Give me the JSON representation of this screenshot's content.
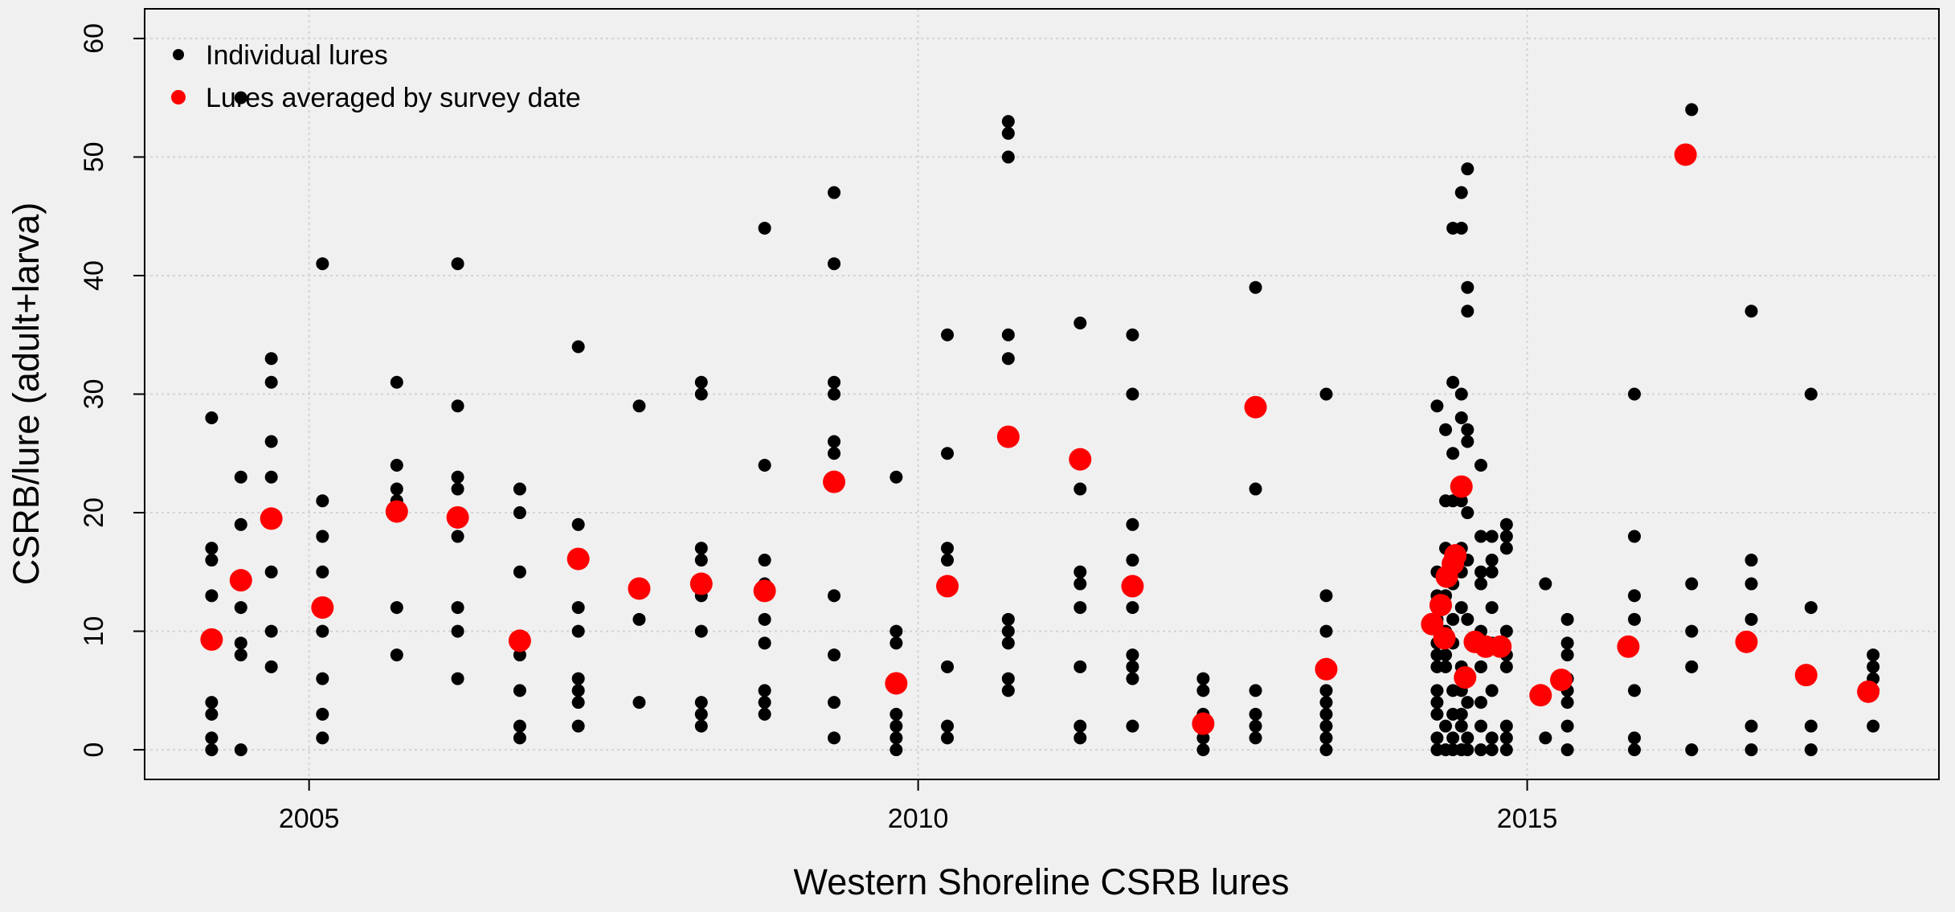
{
  "chart_data": {
    "type": "scatter",
    "xlabel": "Western Shoreline CSRB lures",
    "ylabel": "CSRB/lure (adult+larva)",
    "xlim": [
      2003.65,
      2018.38
    ],
    "ylim": [
      -2.5,
      62.5
    ],
    "xticks": [
      2005,
      2010,
      2015
    ],
    "yticks": [
      0,
      10,
      20,
      30,
      40,
      50,
      60
    ],
    "grid": true,
    "legend": "top-left",
    "series": [
      {
        "name": "Individual lures",
        "color": "#000000",
        "x": [
          2004.2,
          2004.2,
          2004.2,
          2004.2,
          2004.2,
          2004.2,
          2004.2,
          2004.2,
          2004.44,
          2004.44,
          2004.44,
          2004.44,
          2004.44,
          2004.44,
          2004.44,
          2004.69,
          2004.69,
          2004.69,
          2004.69,
          2004.69,
          2004.69,
          2004.69,
          2005.11,
          2005.11,
          2005.11,
          2005.11,
          2005.11,
          2005.11,
          2005.11,
          2005.11,
          2005.72,
          2005.72,
          2005.72,
          2005.72,
          2005.72,
          2005.72,
          2006.22,
          2006.22,
          2006.22,
          2006.22,
          2006.22,
          2006.22,
          2006.22,
          2006.22,
          2006.73,
          2006.73,
          2006.73,
          2006.73,
          2006.73,
          2006.73,
          2006.73,
          2006.73,
          2007.21,
          2007.21,
          2007.21,
          2007.21,
          2007.21,
          2007.21,
          2007.21,
          2007.21,
          2007.71,
          2007.71,
          2007.71,
          2008.22,
          2008.22,
          2008.22,
          2008.22,
          2008.22,
          2008.22,
          2008.22,
          2008.22,
          2008.22,
          2008.74,
          2008.74,
          2008.74,
          2008.74,
          2008.74,
          2008.74,
          2008.74,
          2008.74,
          2008.74,
          2009.31,
          2009.31,
          2009.31,
          2009.31,
          2009.31,
          2009.31,
          2009.31,
          2009.31,
          2009.31,
          2009.31,
          2009.82,
          2009.82,
          2009.82,
          2009.82,
          2009.82,
          2009.82,
          2009.82,
          2009.82,
          2010.24,
          2010.24,
          2010.24,
          2010.24,
          2010.24,
          2010.24,
          2010.24,
          2010.74,
          2010.74,
          2010.74,
          2010.74,
          2010.74,
          2010.74,
          2010.74,
          2010.74,
          2010.74,
          2010.74,
          2011.33,
          2011.33,
          2011.33,
          2011.33,
          2011.33,
          2011.33,
          2011.33,
          2011.33,
          2011.76,
          2011.76,
          2011.76,
          2011.76,
          2011.76,
          2011.76,
          2011.76,
          2011.76,
          2011.76,
          2012.34,
          2012.34,
          2012.34,
          2012.34,
          2012.34,
          2012.34,
          2012.77,
          2012.77,
          2012.77,
          2012.77,
          2012.77,
          2012.77,
          2013.35,
          2013.35,
          2013.35,
          2013.35,
          2013.35,
          2013.35,
          2013.35,
          2013.35,
          2013.35,
          2013.35,
          2014.26,
          2014.26,
          2014.26,
          2014.26,
          2014.26,
          2014.26,
          2014.26,
          2014.26,
          2014.26,
          2014.26,
          2014.26,
          2014.26,
          2014.33,
          2014.33,
          2014.33,
          2014.33,
          2014.33,
          2014.33,
          2014.33,
          2014.33,
          2014.33,
          2014.39,
          2014.39,
          2014.39,
          2014.39,
          2014.39,
          2014.39,
          2014.39,
          2014.39,
          2014.39,
          2014.39,
          2014.39,
          2014.46,
          2014.46,
          2014.46,
          2014.46,
          2014.46,
          2014.46,
          2014.46,
          2014.46,
          2014.46,
          2014.46,
          2014.46,
          2014.46,
          2014.46,
          2014.51,
          2014.51,
          2014.51,
          2014.51,
          2014.51,
          2014.51,
          2014.51,
          2014.51,
          2014.51,
          2014.51,
          2014.51,
          2014.51,
          2014.62,
          2014.62,
          2014.62,
          2014.62,
          2014.62,
          2014.62,
          2014.62,
          2014.62,
          2014.62,
          2014.71,
          2014.71,
          2014.71,
          2014.71,
          2014.71,
          2014.71,
          2014.71,
          2014.71,
          2014.83,
          2014.83,
          2014.83,
          2014.83,
          2014.83,
          2014.83,
          2014.83,
          2014.83,
          2014.83,
          2015.15,
          2015.15,
          2015.33,
          2015.33,
          2015.33,
          2015.33,
          2015.33,
          2015.33,
          2015.33,
          2015.33,
          2015.88,
          2015.88,
          2015.88,
          2015.88,
          2015.88,
          2015.88,
          2015.88,
          2016.35,
          2016.35,
          2016.35,
          2016.35,
          2016.35,
          2016.84,
          2016.84,
          2016.84,
          2016.84,
          2016.84,
          2016.84,
          2017.33,
          2017.33,
          2017.33,
          2017.33,
          2017.84,
          2017.84,
          2017.84,
          2017.84,
          2017.84
        ],
        "values": [
          28,
          17,
          16,
          13,
          4,
          3,
          1,
          0,
          55,
          23,
          19,
          12,
          9,
          8,
          0,
          33,
          31,
          26,
          23,
          15,
          10,
          7,
          41,
          21,
          18,
          15,
          10,
          6,
          3,
          1,
          31,
          24,
          22,
          21,
          12,
          8,
          41,
          29,
          23,
          22,
          18,
          12,
          10,
          6,
          22,
          20,
          15,
          9,
          8,
          5,
          2,
          1,
          34,
          19,
          12,
          10,
          6,
          5,
          4,
          2,
          29,
          11,
          4,
          31,
          30,
          17,
          16,
          13,
          10,
          4,
          3,
          2,
          44,
          24,
          16,
          14,
          11,
          9,
          5,
          4,
          3,
          47,
          41,
          31,
          30,
          26,
          25,
          13,
          8,
          4,
          1,
          23,
          10,
          9,
          6,
          3,
          2,
          1,
          0,
          35,
          25,
          17,
          16,
          7,
          2,
          1,
          53,
          52,
          50,
          35,
          33,
          11,
          10,
          9,
          6,
          5,
          36,
          22,
          15,
          14,
          12,
          7,
          2,
          1,
          35,
          30,
          19,
          16,
          12,
          8,
          7,
          6,
          2,
          6,
          5,
          3,
          2,
          1,
          0,
          39,
          22,
          5,
          3,
          2,
          1,
          30,
          13,
          10,
          7,
          5,
          4,
          3,
          2,
          1,
          0,
          29,
          15,
          13,
          11,
          9,
          8,
          7,
          5,
          4,
          3,
          1,
          0,
          27,
          21,
          17,
          13,
          10,
          8,
          7,
          2,
          0,
          44,
          31,
          25,
          21,
          14,
          11,
          9,
          5,
          3,
          1,
          0,
          47,
          44,
          30,
          28,
          21,
          17,
          15,
          12,
          7,
          5,
          3,
          2,
          0,
          49,
          39,
          37,
          27,
          26,
          20,
          16,
          11,
          6,
          4,
          1,
          0,
          24,
          18,
          15,
          14,
          10,
          7,
          4,
          2,
          0,
          18,
          16,
          15,
          12,
          9,
          5,
          1,
          0,
          19,
          18,
          17,
          10,
          8,
          7,
          2,
          1,
          0,
          14,
          1,
          11,
          9,
          8,
          6,
          5,
          4,
          2,
          0,
          30,
          18,
          13,
          11,
          5,
          1,
          0,
          54,
          14,
          10,
          7,
          0,
          37,
          16,
          14,
          11,
          2,
          0,
          30,
          12,
          2,
          0,
          8,
          7,
          6,
          5,
          2
        ]
      },
      {
        "name": "Lures averaged by survey date",
        "color": "#ff0000",
        "x": [
          2004.2,
          2004.44,
          2004.69,
          2005.11,
          2005.72,
          2006.22,
          2006.73,
          2007.21,
          2007.71,
          2008.22,
          2008.74,
          2009.31,
          2009.82,
          2010.24,
          2010.74,
          2011.33,
          2011.76,
          2012.34,
          2012.77,
          2013.35,
          2014.22,
          2014.29,
          2014.32,
          2014.34,
          2014.39,
          2014.41,
          2014.46,
          2014.49,
          2014.57,
          2014.66,
          2014.78,
          2015.11,
          2015.28,
          2015.83,
          2016.3,
          2016.8,
          2017.29,
          2017.8
        ],
        "values": [
          9.3,
          14.3,
          19.5,
          12,
          20.1,
          19.6,
          9.2,
          16.1,
          13.6,
          14,
          13.4,
          22.6,
          5.6,
          13.8,
          26.4,
          24.5,
          13.8,
          2.2,
          28.9,
          6.8,
          10.6,
          12.2,
          9.4,
          14.6,
          15.7,
          16.4,
          22.2,
          6.1,
          9.1,
          8.7,
          8.7,
          4.6,
          5.9,
          8.7,
          50.2,
          9.1,
          6.3,
          4.9
        ]
      }
    ]
  }
}
